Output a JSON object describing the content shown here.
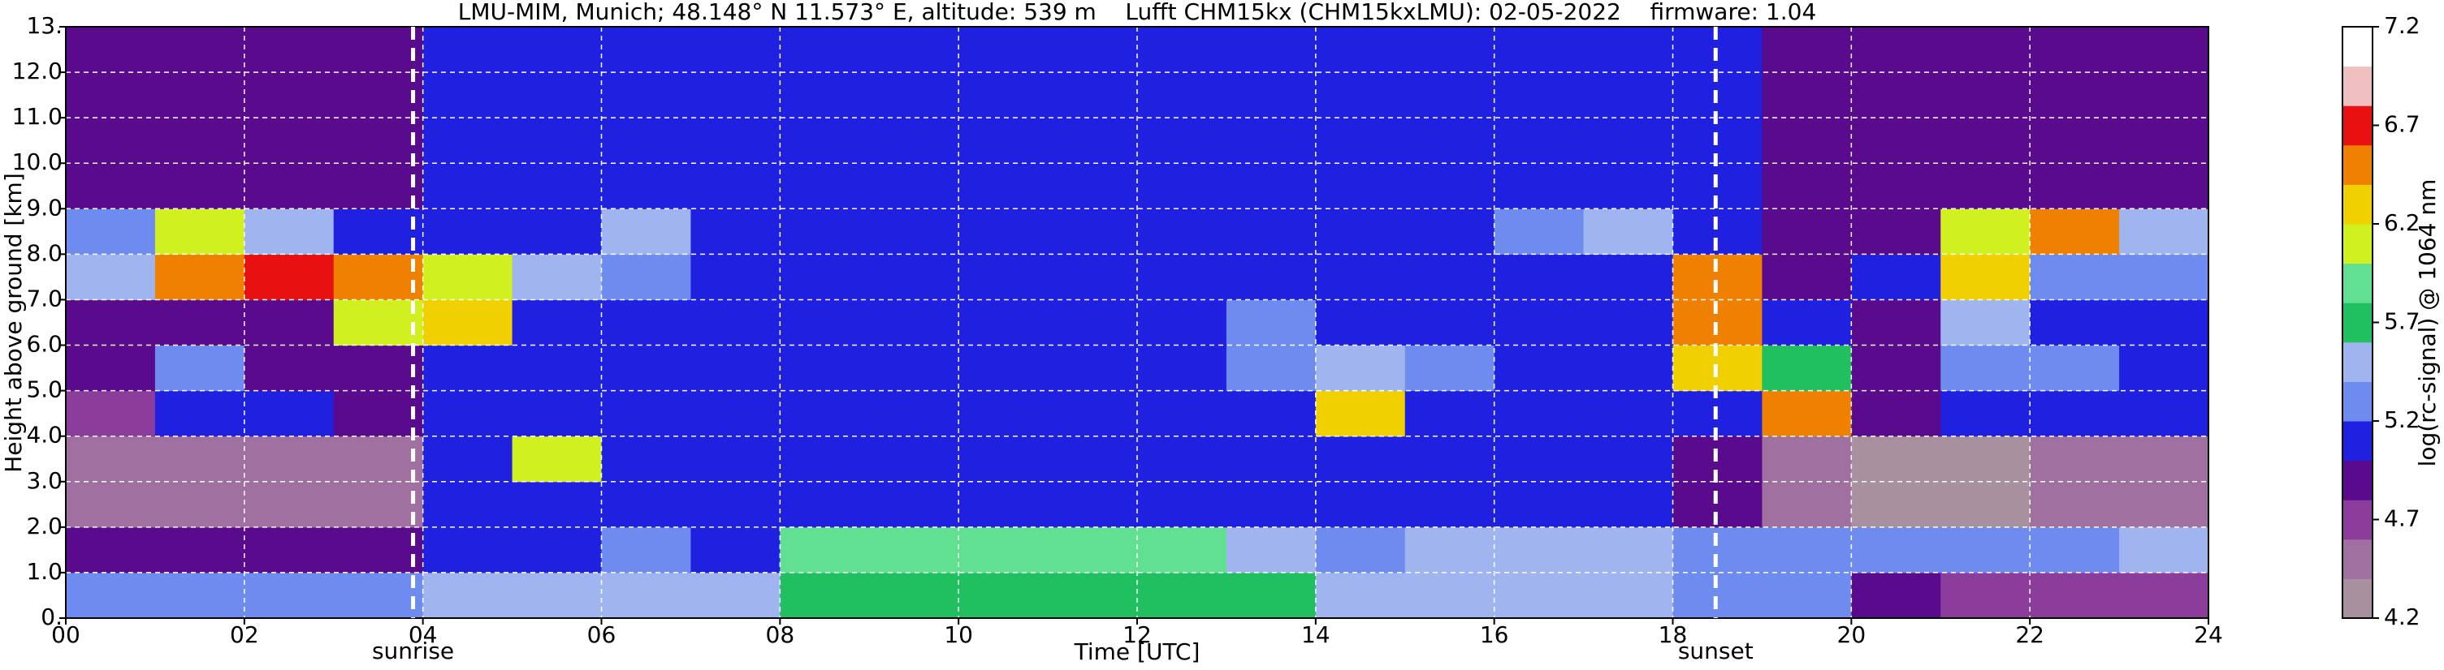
{
  "chart_data": {
    "type": "heatmap",
    "title": "LMU-MIM, Munich; 48.148° N 11.573° E, altitude: 539 m    Lufft CHM15kx (CHM15kxLMU): 02-05-2022    firmware: 1.04",
    "xlabel": "Time [UTC]",
    "ylabel": "Height above ground [km]",
    "xlim": [
      0,
      24
    ],
    "ylim": [
      0,
      13
    ],
    "xticks": [
      {
        "value": 0,
        "label": "00"
      },
      {
        "value": 2,
        "label": "02"
      },
      {
        "value": 4,
        "label": "04"
      },
      {
        "value": 6,
        "label": "06"
      },
      {
        "value": 8,
        "label": "08"
      },
      {
        "value": 10,
        "label": "10"
      },
      {
        "value": 12,
        "label": "12"
      },
      {
        "value": 14,
        "label": "14"
      },
      {
        "value": 16,
        "label": "16"
      },
      {
        "value": 18,
        "label": "18"
      },
      {
        "value": 20,
        "label": "20"
      },
      {
        "value": 22,
        "label": "22"
      },
      {
        "value": 24,
        "label": "24"
      }
    ],
    "yticks": [
      {
        "value": 0,
        "label": "0."
      },
      {
        "value": 1,
        "label": "1.0"
      },
      {
        "value": 2,
        "label": "2.0"
      },
      {
        "value": 3,
        "label": "3.0"
      },
      {
        "value": 4,
        "label": "4.0"
      },
      {
        "value": 5,
        "label": "5.0"
      },
      {
        "value": 6,
        "label": "6.0"
      },
      {
        "value": 7,
        "label": "7.0"
      },
      {
        "value": 8,
        "label": "8.0"
      },
      {
        "value": 9,
        "label": "9.0"
      },
      {
        "value": 10,
        "label": "10.0"
      },
      {
        "value": 11,
        "label": "11.0"
      },
      {
        "value": 12,
        "label": "12.0"
      },
      {
        "value": 13,
        "label": "13."
      }
    ],
    "grid": true,
    "x_edges": [
      0,
      1,
      2,
      3,
      4,
      5,
      6,
      7,
      8,
      9,
      10,
      11,
      12,
      13,
      14,
      15,
      16,
      17,
      18,
      19,
      20,
      21,
      22,
      23,
      24
    ],
    "y_edges": [
      0,
      1,
      2,
      3,
      4,
      5,
      6,
      7,
      8,
      9,
      10,
      11,
      12,
      13
    ],
    "z": [
      [
        5.3,
        5.3,
        5.3,
        5.3,
        5.4,
        5.4,
        5.4,
        5.4,
        5.7,
        5.7,
        5.7,
        5.7,
        5.7,
        5.7,
        5.5,
        5.5,
        5.5,
        5.5,
        5.2,
        5.2,
        4.8,
        4.7,
        4.7,
        4.7
      ],
      [
        4.8,
        4.8,
        4.8,
        4.8,
        5.0,
        5.0,
        5.3,
        5.1,
        5.8,
        5.9,
        5.9,
        5.9,
        5.9,
        5.4,
        5.3,
        5.5,
        5.4,
        5.4,
        5.3,
        5.2,
        5.3,
        5.3,
        5.3,
        5.4
      ],
      [
        4.5,
        4.5,
        4.5,
        4.5,
        5.0,
        5.0,
        5.0,
        5.0,
        5.0,
        5.0,
        5.0,
        5.0,
        5.0,
        5.0,
        5.0,
        5.0,
        5.0,
        5.0,
        4.9,
        4.4,
        4.3,
        4.3,
        4.4,
        4.4
      ],
      [
        4.5,
        4.5,
        4.4,
        4.5,
        5.0,
        6.0,
        5.0,
        5.1,
        5.0,
        5.0,
        5.0,
        5.0,
        5.0,
        5.0,
        5.0,
        5.0,
        5.0,
        5.0,
        4.9,
        4.5,
        4.3,
        4.3,
        4.4,
        4.5
      ],
      [
        4.7,
        5.0,
        5.1,
        4.8,
        5.0,
        5.0,
        5.0,
        5.1,
        5.0,
        5.0,
        5.0,
        5.0,
        5.0,
        5.0,
        6.2,
        5.0,
        5.0,
        5.0,
        5.1,
        6.4,
        4.8,
        5.0,
        5.0,
        5.1
      ],
      [
        4.9,
        5.2,
        4.9,
        4.9,
        5.0,
        5.0,
        5.1,
        5.0,
        5.0,
        5.1,
        5.0,
        5.0,
        5.0,
        5.2,
        5.5,
        5.3,
        5.0,
        5.0,
        6.2,
        5.6,
        4.9,
        5.3,
        5.2,
        5.1
      ],
      [
        4.9,
        4.9,
        4.9,
        6.0,
        6.3,
        5.1,
        5.1,
        5.0,
        5.0,
        5.0,
        5.0,
        5.0,
        5.0,
        5.3,
        5.1,
        5.0,
        5.0,
        5.0,
        6.4,
        5.0,
        4.9,
        5.4,
        5.1,
        5.0
      ],
      [
        5.4,
        6.4,
        6.6,
        6.4,
        6.0,
        5.5,
        5.2,
        5.1,
        5.1,
        5.0,
        5.0,
        5.0,
        5.1,
        5.1,
        5.1,
        5.0,
        5.0,
        5.0,
        6.4,
        4.9,
        5.0,
        6.2,
        5.3,
        5.3
      ],
      [
        5.2,
        6.0,
        5.5,
        5.0,
        5.0,
        5.0,
        5.4,
        5.1,
        5.0,
        5.0,
        5.0,
        5.0,
        5.0,
        5.0,
        5.0,
        5.0,
        5.3,
        5.4,
        5.0,
        4.9,
        4.9,
        6.1,
        6.4,
        5.4
      ],
      [
        4.9,
        4.9,
        4.9,
        4.9,
        5.1,
        5.1,
        5.1,
        5.1,
        5.1,
        5.1,
        5.1,
        5.1,
        5.1,
        5.1,
        5.1,
        5.1,
        5.1,
        5.1,
        5.0,
        4.9,
        4.9,
        4.9,
        4.9,
        4.9
      ],
      [
        4.9,
        4.9,
        4.9,
        4.9,
        5.1,
        5.1,
        5.1,
        5.1,
        5.1,
        5.1,
        5.1,
        5.1,
        5.1,
        5.1,
        5.1,
        5.1,
        5.1,
        5.1,
        5.0,
        4.9,
        4.9,
        4.9,
        4.9,
        4.9
      ],
      [
        4.9,
        4.9,
        4.9,
        4.9,
        5.1,
        5.1,
        5.1,
        5.1,
        5.1,
        5.1,
        5.1,
        5.1,
        5.1,
        5.1,
        5.1,
        5.1,
        5.1,
        5.1,
        5.0,
        4.9,
        4.9,
        4.9,
        4.9,
        4.9
      ],
      [
        4.9,
        4.9,
        4.9,
        4.9,
        5.1,
        5.1,
        5.1,
        5.1,
        5.1,
        5.1,
        5.1,
        5.1,
        5.1,
        5.1,
        5.1,
        5.1,
        5.1,
        5.1,
        5.0,
        4.9,
        4.9,
        4.9,
        4.9,
        4.9
      ]
    ],
    "colorbar": {
      "label": "log(rc-signal) @ 1064 nm",
      "lim": [
        4.2,
        7.2
      ],
      "ticks": [
        4.2,
        4.7,
        5.2,
        5.7,
        6.2,
        6.7,
        7.2
      ],
      "colors": [
        "#a8909f",
        "#a070a0",
        "#8c3c9a",
        "#5a0a8c",
        "#2020e0",
        "#6e8cf0",
        "#a0b4f0",
        "#20c060",
        "#60e090",
        "#d0f020",
        "#f0d000",
        "#f08000",
        "#e81010",
        "#f0c0c0",
        "#ffffff"
      ]
    },
    "annotations": [
      {
        "label": "sunrise",
        "x": 3.89
      },
      {
        "label": "sunset",
        "x": 18.48
      }
    ]
  }
}
